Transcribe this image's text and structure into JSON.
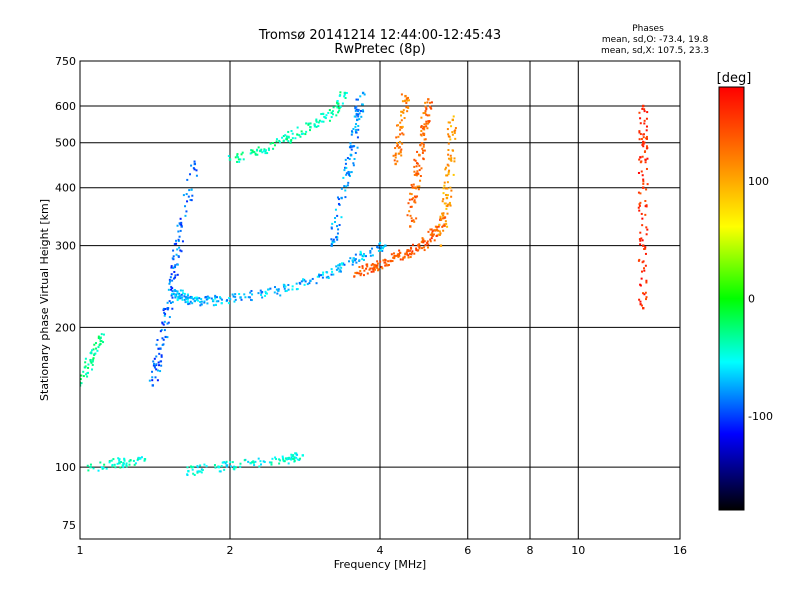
{
  "header": {
    "title": "Tromsø 20141214 12:44:00-12:45:43",
    "subtitle": "RwPretec (8p)",
    "phases_title": "Phases",
    "phases_o": "mean, sd,O: -73.4, 19.8",
    "phases_x": "mean, sd,X: 107.5, 23.3"
  },
  "chart_data": {
    "type": "scatter",
    "xlabel": "Frequency [MHz]",
    "ylabel": "Stationary phase Virtual Height [km]",
    "x_scale": "log",
    "y_scale": "log",
    "xlim": [
      1,
      16
    ],
    "ylim": [
      70,
      750
    ],
    "x_ticks": [
      1,
      2,
      4,
      6,
      8,
      10,
      16
    ],
    "y_ticks": [
      75,
      100,
      200,
      300,
      400,
      500,
      600,
      750
    ],
    "x_gridlines": [
      2,
      4,
      6,
      8,
      10
    ],
    "y_gridlines": [
      100,
      200,
      300,
      400,
      500,
      600
    ],
    "colorbar": {
      "label": "[deg]",
      "range": [
        -180,
        180
      ],
      "ticks": [
        100,
        0,
        -100
      ],
      "colors": [
        "#ff0000",
        "#ff8000",
        "#ffff00",
        "#00ff00",
        "#00ffff",
        "#0000ff",
        "#000000"
      ]
    },
    "traces": [
      {
        "x": [
          1.55,
          1.6,
          1.7,
          1.85,
          2.1,
          2.5,
          2.9,
          3.3,
          3.7,
          4.1
        ],
        "y": [
          240,
          232,
          228,
          228,
          232,
          240,
          252,
          268,
          285,
          300
        ],
        "phase": -78
      },
      {
        "x": [
          1.4,
          1.45,
          1.5,
          1.55,
          1.6,
          1.7
        ],
        "y": [
          150,
          180,
          220,
          270,
          330,
          450
        ],
        "phase": -95
      },
      {
        "x": [
          2.0,
          2.3,
          2.6,
          2.9,
          3.2,
          3.4
        ],
        "y": [
          460,
          480,
          510,
          540,
          580,
          640
        ],
        "phase": -40
      },
      {
        "x": [
          3.2,
          3.35,
          3.5,
          3.6,
          3.7
        ],
        "y": [
          300,
          380,
          470,
          560,
          640
        ],
        "phase": -85
      },
      {
        "x": [
          3.6,
          3.9,
          4.2,
          4.5,
          4.8,
          5.1,
          5.4
        ],
        "y": [
          262,
          270,
          278,
          288,
          298,
          315,
          345
        ],
        "phase": 140
      },
      {
        "x": [
          4.6,
          4.7,
          4.8,
          4.9,
          5.0
        ],
        "y": [
          330,
          400,
          470,
          540,
          620
        ],
        "phase": 130
      },
      {
        "x": [
          5.3,
          5.45,
          5.55,
          5.6
        ],
        "y": [
          300,
          380,
          460,
          560
        ],
        "phase": 105
      },
      {
        "x": [
          4.3,
          4.4,
          4.5
        ],
        "y": [
          450,
          540,
          630
        ],
        "phase": 120
      },
      {
        "x": [
          1.05,
          1.2,
          1.35
        ],
        "y": [
          100,
          102,
          104
        ],
        "phase": -45
      },
      {
        "x": [
          1.65,
          1.9,
          2.2,
          2.6,
          2.8
        ],
        "y": [
          98,
          100,
          102,
          104,
          106
        ],
        "phase": -55
      },
      {
        "x": [
          1.0,
          1.05,
          1.1
        ],
        "y": [
          150,
          170,
          190
        ],
        "phase": -35
      },
      {
        "x": [
          13.5,
          13.5,
          13.5,
          13.5,
          13.5
        ],
        "y": [
          220,
          300,
          400,
          500,
          600
        ],
        "phase": 160
      }
    ]
  }
}
